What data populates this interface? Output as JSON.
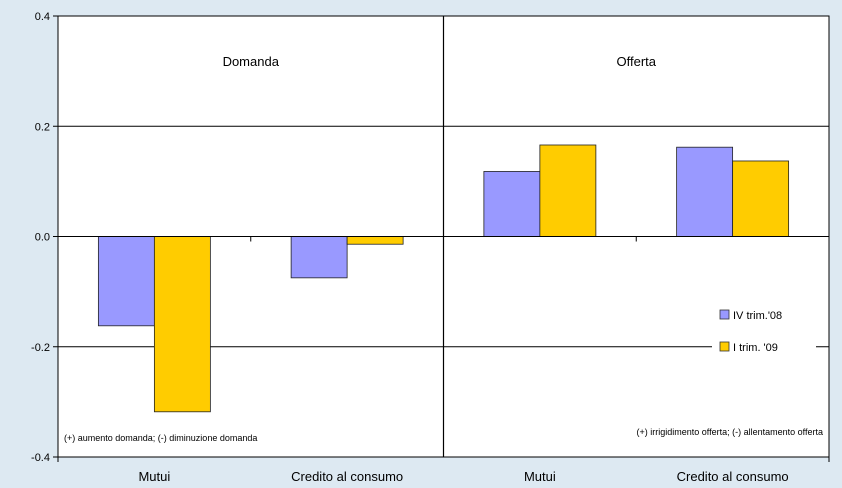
{
  "chart_data": {
    "type": "bar",
    "ylim": [
      -0.4,
      0.4
    ],
    "yticks": [
      "0.4",
      "0.2",
      "0.0",
      "-0.2",
      "-0.4"
    ],
    "grid": "horizontal",
    "panels": [
      {
        "title": "Domanda",
        "note": "(+) aumento domanda; (-) diminuzione domanda",
        "categories": [
          "Mutui",
          "Credito al consumo"
        ]
      },
      {
        "title": "Offerta",
        "note": "(+) irrigidimento offerta; (-) allentamento offerta",
        "categories": [
          "Mutui",
          "Credito al consumo"
        ]
      }
    ],
    "series": [
      {
        "name": "IV trim.'08",
        "color": "#9999ff",
        "values": [
          -0.162,
          -0.075,
          0.118,
          0.162
        ]
      },
      {
        "name": "I trim. '09",
        "color": "#ffcc00",
        "values": [
          -0.318,
          -0.014,
          0.166,
          0.137
        ]
      }
    ],
    "legend": "bottom-right"
  }
}
